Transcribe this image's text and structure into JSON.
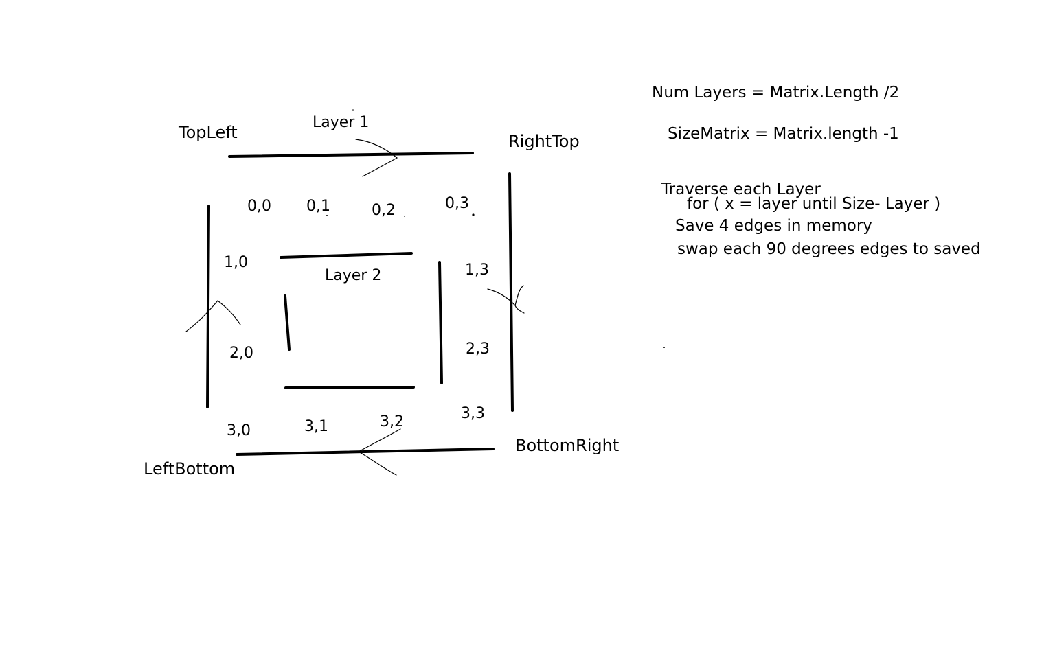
{
  "corners": {
    "top_left": "TopLeft",
    "right_top": "RightTop",
    "bottom_right": "BottomRight",
    "left_bottom": "LeftBottom"
  },
  "layers": {
    "outer": "Layer 1",
    "inner": "Layer 2"
  },
  "cells": {
    "c00": "0,0",
    "c01": "0,1",
    "c02": "0,2",
    "c03": "0,3",
    "c10": "1,0",
    "c13": "1,3",
    "c20": "2,0",
    "c23": "2,3",
    "c30": "3,0",
    "c31": "3,1",
    "c32": "3,2",
    "c33": "3,3"
  },
  "notes": {
    "num_layers": "Num Layers = Matrix.Length /2",
    "size_matrix": "SizeMatrix = Matrix.length -1",
    "traverse": "Traverse each Layer",
    "for_loop": "for ( x = layer until Size- Layer )",
    "save_edges": "Save 4 edges in memory",
    "swap_edges": "swap each 90 degrees  edges to saved"
  },
  "colors": {
    "ink": "#000000",
    "background": "#ffffff"
  }
}
